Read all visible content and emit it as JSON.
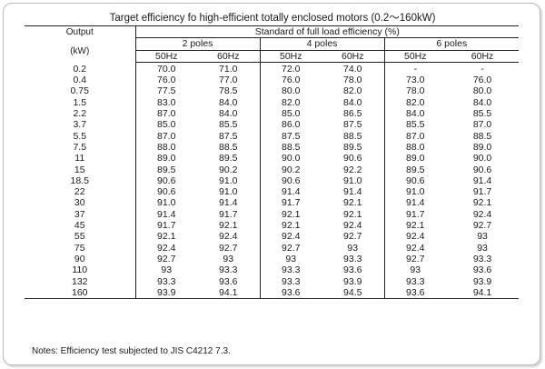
{
  "title": "Target efficiency fo high-efficient totally enclosed motors (0.2～160kW)",
  "header": {
    "output_line1": "Output",
    "output_line2": "(kW)",
    "standard": "Standard of full load efficiency (%)",
    "poles": [
      "2 poles",
      "4 poles",
      "6 poles"
    ],
    "freqs": [
      "50Hz",
      "60Hz",
      "50Hz",
      "60Hz",
      "50Hz",
      "60Hz"
    ]
  },
  "rows": [
    [
      "0.2",
      "70.0",
      "71.0",
      "72.0",
      "74.0",
      "-",
      "-"
    ],
    [
      "0.4",
      "76.0",
      "77.0",
      "76.0",
      "78.0",
      "73.0",
      "76.0"
    ],
    [
      "0.75",
      "77.5",
      "78.5",
      "80.0",
      "82.0",
      "78.0",
      "80.0"
    ],
    [
      "1.5",
      "83.0",
      "84.0",
      "82.0",
      "84.0",
      "82.0",
      "84.0"
    ],
    [
      "2.2",
      "87.0",
      "84.0",
      "85.0",
      "86.5",
      "84.0",
      "85.5"
    ],
    [
      "3.7",
      "85.0",
      "85.5",
      "86.0",
      "87.5",
      "85.5",
      "87.0"
    ],
    [
      "5.5",
      "87.0",
      "87.5",
      "87.5",
      "88.5",
      "87.0",
      "88.5"
    ],
    [
      "7.5",
      "88.0",
      "88.5",
      "88.5",
      "89.5",
      "88.0",
      "89.0"
    ],
    [
      "11",
      "89.0",
      "89.5",
      "90.0",
      "90.6",
      "89.0",
      "90.0"
    ],
    [
      "15",
      "89.5",
      "90.2",
      "90.2",
      "92.2",
      "89.5",
      "90.6"
    ],
    [
      "18.5",
      "90.6",
      "91.0",
      "90.6",
      "91.0",
      "90.6",
      "91.4"
    ],
    [
      "22",
      "90.6",
      "91.0",
      "91.4",
      "91.4",
      "91.0",
      "91.7"
    ],
    [
      "30",
      "91.0",
      "91.4",
      "91.7",
      "92.1",
      "91.4",
      "92.1"
    ],
    [
      "37",
      "91.4",
      "91.7",
      "92.1",
      "92.1",
      "91.7",
      "92.4"
    ],
    [
      "45",
      "91.7",
      "92.1",
      "92.1",
      "92.4",
      "92.1",
      "92.7"
    ],
    [
      "55",
      "92.1",
      "92.4",
      "92.4",
      "92.7",
      "92.4",
      "93"
    ],
    [
      "75",
      "92.4",
      "92.7",
      "92.7",
      "93",
      "92.4",
      "93"
    ],
    [
      "90",
      "92.7",
      "93",
      "93",
      "93.3",
      "92.7",
      "93.3"
    ],
    [
      "110",
      "93",
      "93.3",
      "93.3",
      "93.6",
      "93",
      "93.6"
    ],
    [
      "132",
      "93.3",
      "93.6",
      "93.3",
      "93.9",
      "93.3",
      "93.9"
    ],
    [
      "160",
      "93.9",
      "94.1",
      "93.6",
      "94.5",
      "93.6",
      "94.1"
    ]
  ],
  "notes": "Notes: Efficiency test subjected to JIS C4212 7.3."
}
